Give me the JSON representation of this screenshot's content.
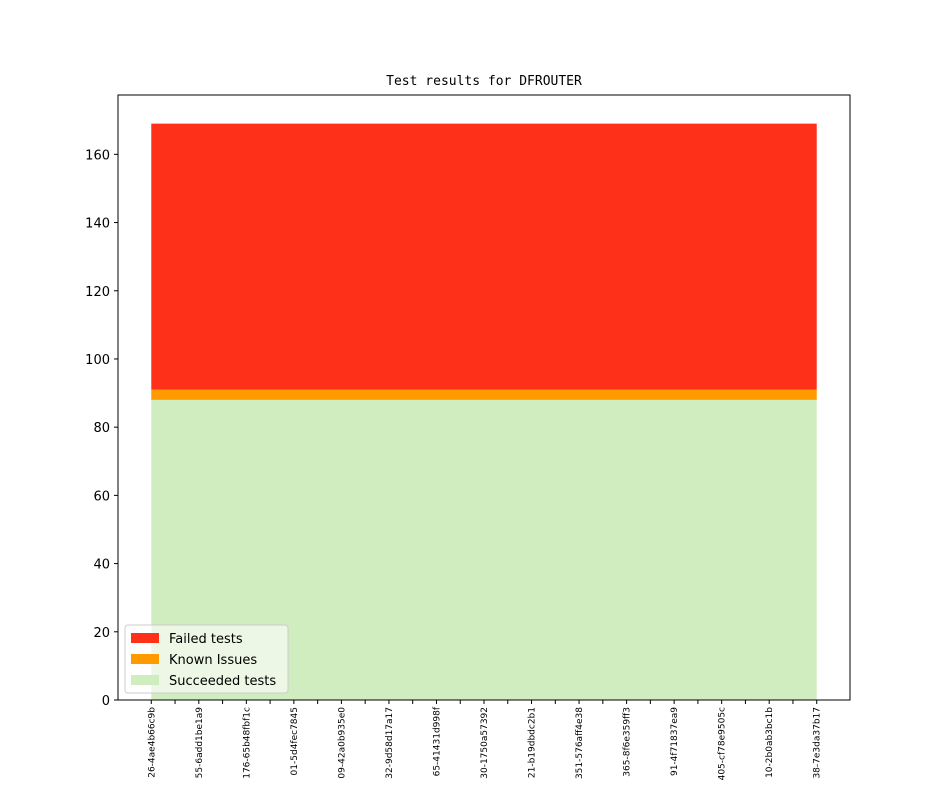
{
  "chart_data": {
    "type": "stacked_area",
    "title": "Test results for DFROUTER",
    "categories": [
      "26-4ae4b66c9b",
      null,
      "55-6add1be1a9",
      null,
      "176-65b48fbf1c",
      null,
      "01-5d4fec7845",
      null,
      "09-42a0b935e0",
      null,
      "32-9d58d17a17",
      null,
      "65-41431d998f",
      null,
      "30-1750a57392",
      null,
      "21-b19dbdc2b1",
      null,
      "351-576aff4e38",
      null,
      "365-8f6e359ff3",
      null,
      "91-4f71837ea9",
      null,
      "405-cf78e9505c",
      null,
      "10-2b0ab3bc1b",
      null,
      "38-7e3da37b17"
    ],
    "series": [
      {
        "name": "Succeeded tests",
        "color": "#cfedbf",
        "values": [
          88,
          88,
          88,
          88,
          88,
          88,
          88,
          88,
          88,
          88,
          88,
          88,
          88,
          88,
          88,
          88,
          88,
          88,
          88,
          88,
          88,
          88,
          88,
          88,
          88,
          88,
          88,
          88,
          88
        ]
      },
      {
        "name": "Known Issues",
        "color": "#ff9a00",
        "values": [
          3,
          3,
          3,
          3,
          3,
          3,
          3,
          3,
          3,
          3,
          3,
          3,
          3,
          3,
          3,
          3,
          3,
          3,
          3,
          3,
          3,
          3,
          3,
          3,
          3,
          3,
          3,
          3,
          3
        ]
      },
      {
        "name": "Failed tests",
        "color": "#ff301a",
        "values": [
          78,
          78,
          78,
          78,
          78,
          78,
          78,
          78,
          78,
          78,
          78,
          78,
          78,
          78,
          78,
          78,
          78,
          78,
          78,
          78,
          78,
          78,
          78,
          78,
          78,
          78,
          78,
          78,
          78
        ]
      }
    ],
    "ylim": [
      0,
      177.4
    ],
    "yticks": [
      0,
      20,
      40,
      60,
      80,
      100,
      120,
      140,
      160
    ],
    "legend": "lower left"
  }
}
